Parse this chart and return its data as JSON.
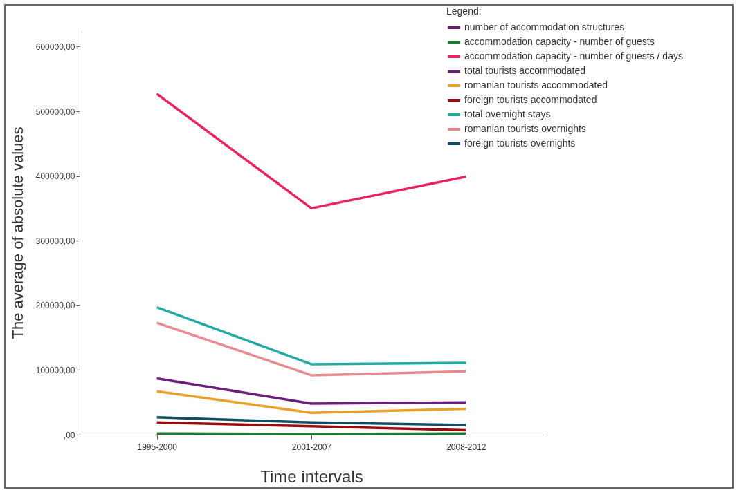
{
  "chart_data": {
    "type": "line",
    "xlabel": "Time intervals",
    "ylabel": "The average of absolute values",
    "legend_title": "Legend:",
    "categories": [
      "1995-2000",
      "2001-2007",
      "2008-2012"
    ],
    "series": [
      {
        "name": "number of accommodation structures",
        "color": "#6b1f7a",
        "values": [
          null,
          null,
          null
        ]
      },
      {
        "name": "accommodation capacity - number of guests",
        "color": "#1e7b2e",
        "values": [
          2000,
          1000,
          2000
        ]
      },
      {
        "name": "accommodation capacity - number of guests / days",
        "color": "#e8245e",
        "values": [
          527000,
          350000,
          399000
        ]
      },
      {
        "name": "total tourists accommodated",
        "color": "#6b1f7a",
        "values": [
          87000,
          48000,
          50000
        ]
      },
      {
        "name": "romanian tourists accommodated",
        "color": "#eba02a",
        "values": [
          67000,
          34000,
          40000
        ]
      },
      {
        "name": "foreign tourists accommodated",
        "color": "#9b0b0b",
        "values": [
          19000,
          13000,
          7000
        ]
      },
      {
        "name": "total overnight stays",
        "color": "#22aaa0",
        "values": [
          197000,
          109000,
          111000
        ]
      },
      {
        "name": "romanian tourists overnights",
        "color": "#e88a8f",
        "values": [
          173000,
          92000,
          98000
        ]
      },
      {
        "name": "foreign tourists overnights",
        "color": "#114e63",
        "values": [
          27000,
          19000,
          15000
        ]
      }
    ],
    "ylim": [
      0,
      625000
    ],
    "yticks": [
      {
        "value": 0,
        "label": ",00"
      },
      {
        "value": 100000,
        "label": "100000,00"
      },
      {
        "value": 200000,
        "label": "200000,00"
      },
      {
        "value": 300000,
        "label": "300000,00"
      },
      {
        "value": 400000,
        "label": "400000,00"
      },
      {
        "value": 500000,
        "label": "500000,00"
      },
      {
        "value": 600000,
        "label": "600000,00"
      }
    ],
    "grid": false,
    "legend": "top right"
  }
}
